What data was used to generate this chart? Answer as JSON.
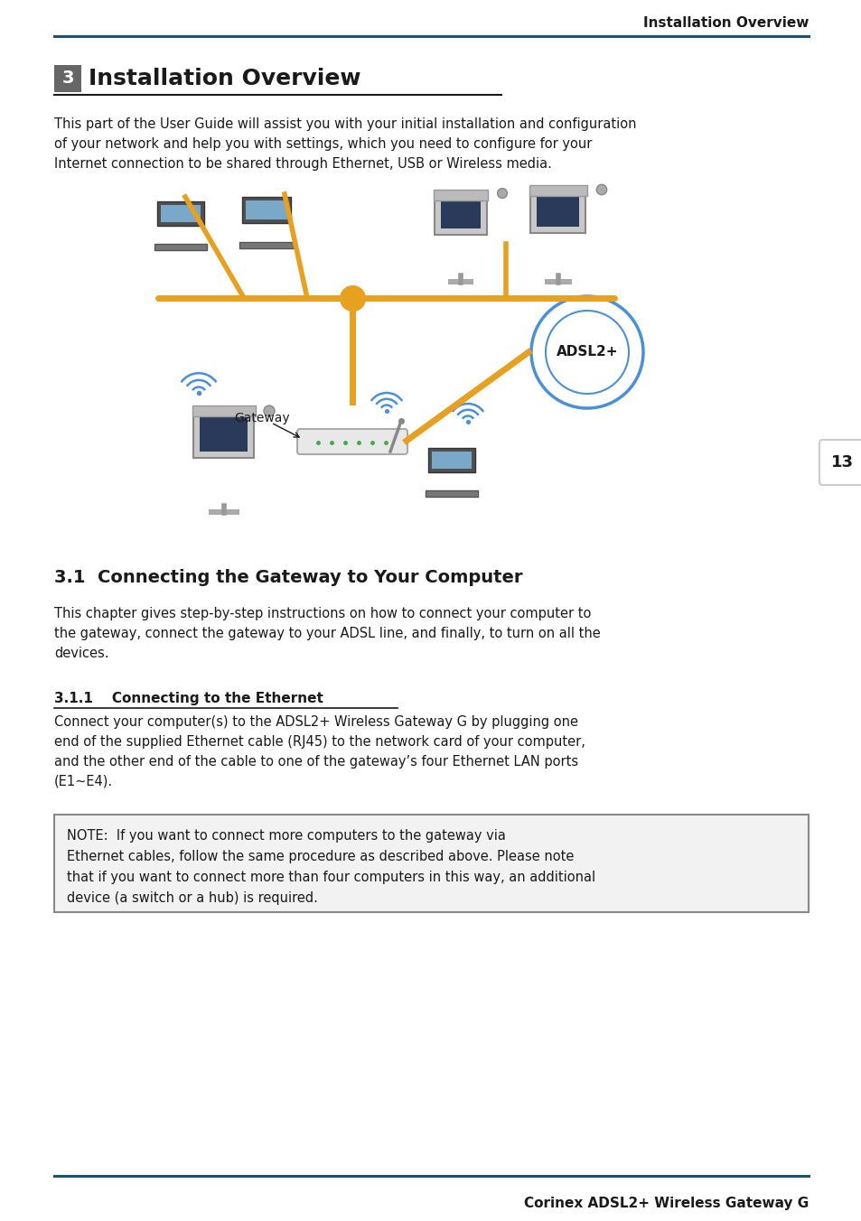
{
  "header_text": "Installation Overview",
  "header_line_color": "#1a5276",
  "footer_line_color": "#1a5276",
  "footer_text": "Corinex ADSL2+ Wireless Gateway G",
  "page_number": "13",
  "section_number_bg": "#666666",
  "section_number": "3",
  "section_title": "Installation Overview",
  "intro_text": "This part of the User Guide will assist you with your initial installation and configuration\nof your network and help you with settings, which you need to configure for your\nInternet connection to be shared through Ethernet, USB or Wireless media.",
  "subsection_title": "3.1  Connecting the Gateway to Your Computer",
  "subsection_body": "This chapter gives step-by-step instructions on how to connect your computer to\nthe gateway, connect the gateway to your ADSL line, and finally, to turn on all the\ndevices.",
  "sub_subsection_title": "3.1.1    Connecting to the Ethernet",
  "sub_subsection_body": "Connect your computer(s) to the ADSL2+ Wireless Gateway G by plugging one\nend of the supplied Ethernet cable (RJ45) to the network card of your computer,\nand the other end of the cable to one of the gateway’s four Ethernet LAN ports\n(E1∼E4).",
  "note_text": "NOTE:  If you want to connect more computers to the gateway via\nEthernet cables, follow the same procedure as described above. Please note\nthat if you want to connect more than four computers in this way, an additional\ndevice (a switch or a hub) is required.",
  "note_border_color": "#888888",
  "note_bg_color": "#f5f5f5",
  "text_color": "#1a1a1a",
  "accent_color": "#1a5276",
  "bg_color": "#ffffff",
  "orange_color": "#E8A020",
  "blue_color": "#4a90d9",
  "ml": 60,
  "mr": 895
}
